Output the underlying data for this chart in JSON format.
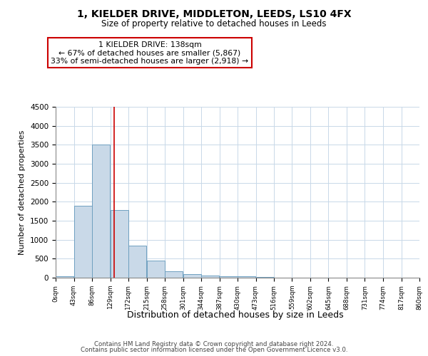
{
  "title1": "1, KIELDER DRIVE, MIDDLETON, LEEDS, LS10 4FX",
  "title2": "Size of property relative to detached houses in Leeds",
  "xlabel": "Distribution of detached houses by size in Leeds",
  "ylabel": "Number of detached properties",
  "annotation_title": "1 KIELDER DRIVE: 138sqm",
  "annotation_line1": "← 67% of detached houses are smaller (5,867)",
  "annotation_line2": "33% of semi-detached houses are larger (2,918) →",
  "footer1": "Contains HM Land Registry data © Crown copyright and database right 2024.",
  "footer2": "Contains public sector information licensed under the Open Government Licence v3.0.",
  "bar_edges": [
    0,
    43,
    86,
    129,
    172,
    215,
    258,
    301,
    344,
    387,
    430,
    473,
    516,
    559,
    602,
    645,
    688,
    731,
    774,
    817,
    860
  ],
  "bar_values": [
    30,
    1900,
    3500,
    1780,
    840,
    450,
    160,
    95,
    60,
    45,
    30,
    20,
    0,
    0,
    0,
    0,
    0,
    0,
    0,
    0
  ],
  "red_line_x": 138,
  "bar_color": "#c9d9e8",
  "bar_edge_color": "#6fa0c0",
  "red_line_color": "#cc0000",
  "ylim": [
    0,
    4500
  ],
  "yticks": [
    0,
    500,
    1000,
    1500,
    2000,
    2500,
    3000,
    3500,
    4000,
    4500
  ],
  "background_color": "#ffffff",
  "grid_color": "#c8d8e8"
}
